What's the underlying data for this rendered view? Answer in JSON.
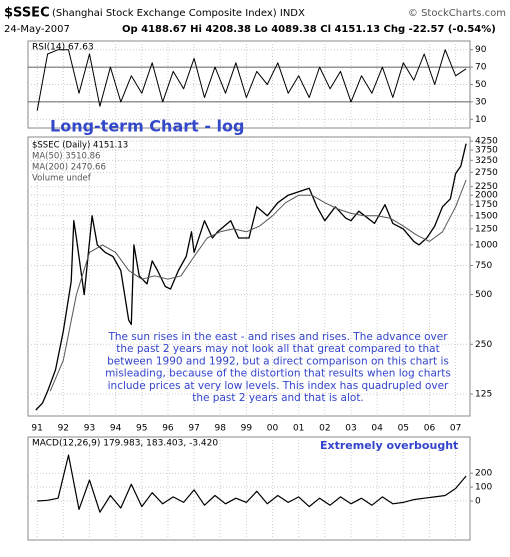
{
  "header": {
    "symbol": "$SSEC",
    "name": "(Shanghai Stock Exchange Composite Index) INDX",
    "source": "© StockCharts.com",
    "date": "24-May-2007",
    "quote": "Op 4188.67  Hi 4208.38  Lo 4089.38  Cl 4151.13  Chg -22.57 (-0.54%)"
  },
  "chart_data": [
    {
      "type": "line",
      "label": "RSI(14) 67.63",
      "xlim": [
        1990.65,
        2007.55
      ],
      "ylim": [
        0,
        100
      ],
      "yticks": [
        10,
        30,
        50,
        70,
        90
      ],
      "hlines": [
        30,
        70
      ],
      "grid": true,
      "series": [
        {
          "color": "#000000",
          "x": [
            1991.0,
            1991.4,
            1991.8,
            1992.2,
            1992.6,
            1993.0,
            1993.4,
            1993.8,
            1994.2,
            1994.6,
            1995.0,
            1995.4,
            1995.8,
            1996.2,
            1996.6,
            1997.0,
            1997.4,
            1997.8,
            1998.2,
            1998.6,
            1999.0,
            1999.4,
            1999.8,
            2000.2,
            2000.6,
            2001.0,
            2001.4,
            2001.8,
            2002.2,
            2002.6,
            2003.0,
            2003.4,
            2003.8,
            2004.2,
            2004.6,
            2005.0,
            2005.4,
            2005.8,
            2006.2,
            2006.6,
            2007.0,
            2007.4
          ],
          "values": [
            20,
            85,
            90,
            90,
            40,
            85,
            25,
            70,
            30,
            60,
            40,
            75,
            30,
            65,
            45,
            80,
            35,
            70,
            40,
            75,
            35,
            65,
            50,
            75,
            40,
            60,
            35,
            70,
            45,
            65,
            30,
            60,
            40,
            70,
            35,
            75,
            55,
            85,
            50,
            90,
            60,
            68
          ]
        }
      ]
    },
    {
      "type": "line",
      "log": true,
      "title": "Long-term Chart - log",
      "legend": [
        "$SSEC (Daily) 4151.13",
        "MA(50) 3510.86",
        "MA(200) 2470.66",
        "Volume undef"
      ],
      "annotation": [
        "The sun rises in the east - and rises and rises. The advance over",
        "the past 2 years may not look all that great compared to that",
        "between 1990 and 1992, but a direct comparison on this chart is",
        "misleading, because of the distortion that results when log charts",
        "include prices at very low levels. This index has quadrupled over",
        "the past 2 years and that is alot."
      ],
      "xlim": [
        1990.65,
        2007.55
      ],
      "xticks": [
        {
          "value": 1991,
          "label": "91"
        },
        {
          "value": 1992,
          "label": "92"
        },
        {
          "value": 1993,
          "label": "93"
        },
        {
          "value": 1994,
          "label": "94"
        },
        {
          "value": 1995,
          "label": "95"
        },
        {
          "value": 1996,
          "label": "96"
        },
        {
          "value": 1997,
          "label": "97"
        },
        {
          "value": 1998,
          "label": "98"
        },
        {
          "value": 1999,
          "label": "99"
        },
        {
          "value": 2000,
          "label": "00"
        },
        {
          "value": 2001,
          "label": "01"
        },
        {
          "value": 2002,
          "label": "02"
        },
        {
          "value": 2003,
          "label": "03"
        },
        {
          "value": 2004,
          "label": "04"
        },
        {
          "value": 2005,
          "label": "05"
        },
        {
          "value": 2006,
          "label": "06"
        },
        {
          "value": 2007,
          "label": "07"
        }
      ],
      "ylim": [
        92,
        4500
      ],
      "yticks": [
        4250,
        3750,
        3250,
        2750,
        2250,
        2000,
        1750,
        1500,
        1250,
        1000,
        750,
        500,
        250,
        125
      ],
      "grid": true,
      "series": [
        {
          "color": "#000000",
          "width": 1.3,
          "x": [
            1990.95,
            1991.2,
            1991.4,
            1991.7,
            1992.0,
            1992.3,
            1992.4,
            1992.5,
            1992.8,
            1993.1,
            1993.3,
            1993.6,
            1993.9,
            1994.2,
            1994.5,
            1994.6,
            1994.7,
            1994.9,
            1995.2,
            1995.4,
            1995.6,
            1995.9,
            1996.1,
            1996.4,
            1996.7,
            1996.9,
            1997.0,
            1997.4,
            1997.7,
            1997.9,
            1998.4,
            1998.7,
            1999.1,
            1999.4,
            1999.8,
            2000.2,
            2000.6,
            2001.0,
            2001.4,
            2001.7,
            2002.0,
            2002.4,
            2002.8,
            2003.0,
            2003.3,
            2003.9,
            2004.3,
            2004.6,
            2005.0,
            2005.4,
            2005.6,
            2005.9,
            2006.2,
            2006.5,
            2006.8,
            2007.0,
            2007.2,
            2007.4
          ],
          "values": [
            100,
            110,
            130,
            175,
            300,
            600,
            1400,
            1100,
            500,
            1500,
            1000,
            900,
            850,
            700,
            350,
            330,
            1000,
            650,
            580,
            800,
            700,
            560,
            540,
            700,
            850,
            1200,
            900,
            1400,
            1100,
            1200,
            1400,
            1100,
            1100,
            1700,
            1500,
            1800,
            2000,
            2100,
            2200,
            1700,
            1400,
            1700,
            1450,
            1400,
            1600,
            1350,
            1750,
            1350,
            1250,
            1050,
            1000,
            1100,
            1300,
            1700,
            1900,
            2700,
            3000,
            4100
          ]
        },
        {
          "color": "#555555",
          "width": 1,
          "x": [
            1991.5,
            1992.0,
            1992.5,
            1993.0,
            1993.5,
            1994.0,
            1994.5,
            1995.0,
            1995.5,
            1996.0,
            1996.5,
            1997.0,
            1997.5,
            1998.0,
            1998.5,
            1999.0,
            1999.5,
            2000.0,
            2000.5,
            2001.0,
            2001.5,
            2002.0,
            2002.5,
            2003.0,
            2003.5,
            2004.0,
            2004.5,
            2005.0,
            2005.5,
            2006.0,
            2006.5,
            2007.0,
            2007.4
          ],
          "values": [
            130,
            200,
            500,
            900,
            1000,
            900,
            700,
            620,
            650,
            620,
            650,
            850,
            1100,
            1200,
            1250,
            1200,
            1300,
            1500,
            1800,
            2000,
            2000,
            1800,
            1650,
            1550,
            1500,
            1500,
            1450,
            1300,
            1150,
            1050,
            1200,
            1700,
            2470.66
          ]
        }
      ]
    },
    {
      "type": "line",
      "label": "MACD(12,26,9) 179.983, 183.403, -3.420",
      "annotation": "Extremely overbought",
      "xlim": [
        1990.65,
        2007.55
      ],
      "ylim": [
        -280,
        460
      ],
      "yticks": [
        200,
        100,
        0
      ],
      "grid": true,
      "series": [
        {
          "color": "#000000",
          "width": 1.2,
          "x": [
            1991.0,
            1991.4,
            1991.8,
            1992.2,
            1992.6,
            1993.0,
            1993.4,
            1993.8,
            1994.2,
            1994.6,
            1995.0,
            1995.4,
            1995.8,
            1996.2,
            1996.6,
            1997.0,
            1997.4,
            1997.8,
            1998.2,
            1998.6,
            1999.0,
            1999.4,
            1999.8,
            2000.2,
            2000.6,
            2001.0,
            2001.4,
            2001.8,
            2002.2,
            2002.6,
            2003.0,
            2003.4,
            2003.8,
            2004.2,
            2004.6,
            2005.0,
            2005.4,
            2005.8,
            2006.2,
            2006.6,
            2007.0,
            2007.4
          ],
          "values": [
            0,
            5,
            20,
            330,
            -60,
            150,
            -80,
            40,
            -50,
            120,
            -40,
            60,
            -20,
            30,
            -10,
            80,
            -30,
            40,
            -20,
            20,
            -10,
            70,
            -20,
            40,
            -10,
            30,
            -40,
            20,
            -30,
            30,
            -20,
            20,
            -30,
            30,
            -20,
            -10,
            10,
            20,
            30,
            40,
            90,
            180
          ]
        }
      ]
    }
  ]
}
